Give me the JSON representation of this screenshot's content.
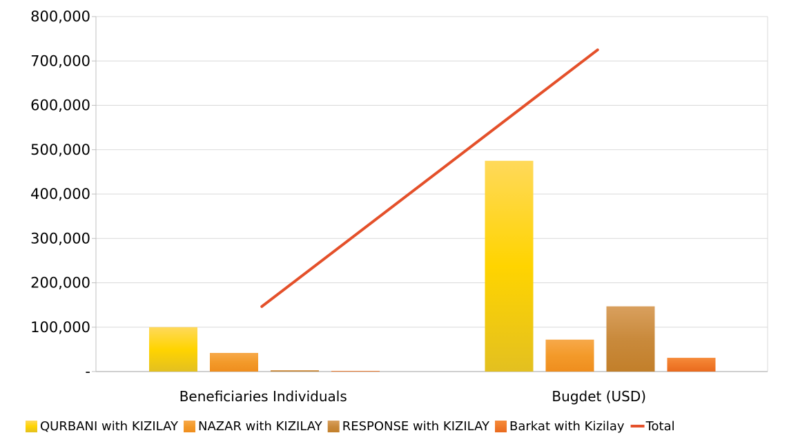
{
  "chart_data": {
    "type": "bar",
    "categories": [
      "Beneficiaries Individuals",
      "Bugdet (USD)"
    ],
    "series": [
      {
        "name": "QURBANI with KIZILAY",
        "type": "bar",
        "values": [
          100000,
          475000
        ],
        "color_top": "#ffd95a",
        "color_mid": "#ffd400",
        "color_bottom": "#e3c020"
      },
      {
        "name": "NAZAR with KIZILAY",
        "type": "bar",
        "values": [
          42000,
          72000
        ],
        "color_top": "#f7a94a",
        "color_mid": "#f39a2a",
        "color_bottom": "#ef8e1e"
      },
      {
        "name": "RESPONSE with KIZILAY",
        "type": "bar",
        "values": [
          3000,
          147000
        ],
        "color_top": "#d9a05e",
        "color_mid": "#c98a3c",
        "color_bottom": "#c27f2a"
      },
      {
        "name": "Barkat with Kizilay",
        "type": "bar",
        "values": [
          1500,
          31000
        ],
        "color_top": "#f58a3a",
        "color_mid": "#f07a2a",
        "color_bottom": "#e96a1e"
      },
      {
        "name": "Total",
        "type": "line",
        "values": [
          146500,
          725000
        ],
        "color": "#e4502a"
      }
    ],
    "ylim": [
      0,
      800000
    ],
    "yticks": [
      0,
      100000,
      200000,
      300000,
      400000,
      500000,
      600000,
      700000,
      800000
    ],
    "ytick_labels": [
      "-",
      "100,000",
      "200,000",
      "300,000",
      "400,000",
      "500,000",
      "600,000",
      "700,000",
      "800,000"
    ],
    "grid": true,
    "legend_position": "bottom",
    "title": "",
    "xlabel": "",
    "ylabel": ""
  }
}
